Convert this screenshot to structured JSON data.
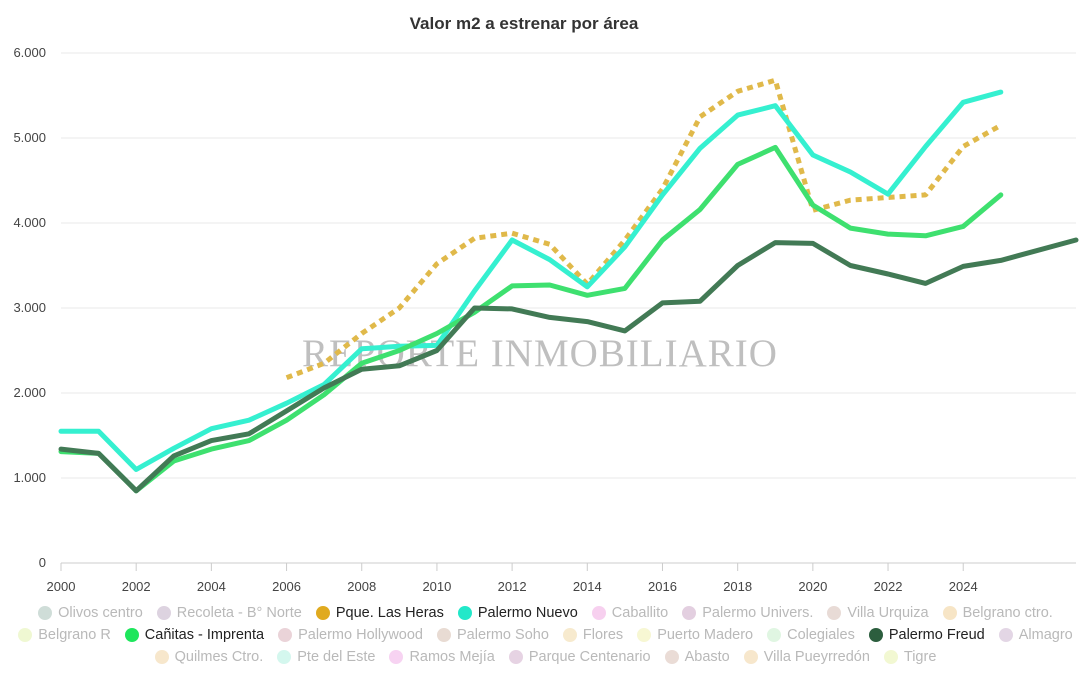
{
  "chart_data": {
    "type": "line",
    "title": "Valor m2 a estrenar por área",
    "watermark": "REPORTE INMOBILIARIO",
    "xlabel": "",
    "ylabel": "",
    "xlim": [
      2000,
      2027
    ],
    "ylim": [
      0,
      6000
    ],
    "y_ticks": [
      0,
      1000,
      2000,
      3000,
      4000,
      5000,
      6000
    ],
    "y_tick_labels": [
      "0",
      "1.000",
      "2.000",
      "3.000",
      "4.000",
      "5.000",
      "6.000"
    ],
    "x_ticks": [
      2000,
      2002,
      2004,
      2006,
      2008,
      2010,
      2012,
      2014,
      2016,
      2018,
      2020,
      2022,
      2024
    ],
    "x_tick_labels": [
      "2000",
      "2002",
      "2004",
      "2006",
      "2008",
      "2010",
      "2012",
      "2014",
      "2016",
      "2018",
      "2020",
      "2022",
      "2024"
    ],
    "grid": "horizontal",
    "legend_position": "bottom",
    "series": [
      {
        "name": "Pque. Las Heras",
        "color": "#e0b94a",
        "style": "dotted",
        "x": [
          2006,
          2007,
          2008,
          2009,
          2010,
          2011,
          2012,
          2013,
          2014,
          2015,
          2016,
          2017,
          2018,
          2019,
          2020,
          2021,
          2022,
          2023,
          2024,
          2025
        ],
        "values": [
          2180,
          2350,
          2700,
          3000,
          3520,
          3820,
          3880,
          3750,
          3280,
          3800,
          4400,
          5250,
          5550,
          5680,
          4150,
          4270,
          4300,
          4330,
          4900,
          5150
        ]
      },
      {
        "name": "Palermo Nuevo",
        "color": "#35f0d0",
        "style": "solid",
        "x": [
          2000,
          2001,
          2002,
          2003,
          2004,
          2005,
          2006,
          2007,
          2008,
          2009,
          2010,
          2011,
          2012,
          2013,
          2014,
          2015,
          2016,
          2017,
          2018,
          2019,
          2020,
          2021,
          2022,
          2023,
          2024,
          2025
        ],
        "values": [
          1550,
          1550,
          1100,
          1350,
          1580,
          1680,
          1880,
          2100,
          2520,
          2550,
          2560,
          3200,
          3800,
          3570,
          3250,
          3720,
          4330,
          4880,
          5270,
          5380,
          4800,
          4600,
          4340,
          4900,
          5420,
          5540
        ]
      },
      {
        "name": "Cañitas - Imprenta",
        "color": "#3ee06f",
        "style": "solid",
        "x": [
          2000,
          2001,
          2002,
          2003,
          2004,
          2005,
          2006,
          2007,
          2008,
          2009,
          2010,
          2011,
          2012,
          2013,
          2014,
          2015,
          2016,
          2017,
          2018,
          2019,
          2020,
          2021,
          2022,
          2023,
          2024,
          2025
        ],
        "values": [
          1310,
          1290,
          850,
          1200,
          1340,
          1440,
          1680,
          1980,
          2350,
          2500,
          2700,
          2950,
          3260,
          3270,
          3150,
          3230,
          3800,
          4160,
          4690,
          4890,
          4210,
          3940,
          3870,
          3850,
          3960,
          4330
        ]
      },
      {
        "name": "Palermo Freud",
        "color": "#427a55",
        "style": "solid",
        "x": [
          2000,
          2001,
          2002,
          2003,
          2004,
          2005,
          2006,
          2007,
          2008,
          2009,
          2010,
          2011,
          2012,
          2013,
          2014,
          2015,
          2016,
          2017,
          2018,
          2019,
          2020,
          2021,
          2022,
          2023,
          2024,
          2025,
          2027
        ],
        "values": [
          1340,
          1290,
          850,
          1260,
          1440,
          1520,
          1790,
          2060,
          2280,
          2320,
          2500,
          3000,
          2990,
          2890,
          2840,
          2730,
          3060,
          3080,
          3500,
          3770,
          3760,
          3500,
          3400,
          3290,
          3490,
          3560,
          3800
        ]
      }
    ]
  },
  "legend": {
    "rows": [
      [
        {
          "label": "Olivos centro",
          "color": "#cfddd8",
          "shown": false
        },
        {
          "label": "Recoleta - B° Norte",
          "color": "#ddd3e0",
          "shown": false
        },
        {
          "label": "Pque. Las Heras",
          "color": "#e0aa1f",
          "shown": true
        },
        {
          "label": "Palermo Nuevo",
          "color": "#22e8c9",
          "shown": true
        },
        {
          "label": "Caballito",
          "color": "#f7d0ef",
          "shown": false
        },
        {
          "label": "Palermo Univers.",
          "color": "#e3cfe0",
          "shown": false
        },
        {
          "label": "Villa Urquiza",
          "color": "#e8dbd6",
          "shown": false
        },
        {
          "label": "Belgrano ctro.",
          "color": "#f7e5c6",
          "shown": false
        }
      ],
      [
        {
          "label": "Belgrano R",
          "color": "#eff8d2",
          "shown": false
        },
        {
          "label": "Cañitas - Imprenta",
          "color": "#1ee65c",
          "shown": true
        },
        {
          "label": "Palermo Hollywood",
          "color": "#ead3d8",
          "shown": false
        },
        {
          "label": "Palermo Soho",
          "color": "#e8dbd3",
          "shown": false
        },
        {
          "label": "Flores",
          "color": "#f7eace",
          "shown": false
        },
        {
          "label": "Puerto Madero",
          "color": "#f7f7d3",
          "shown": false
        },
        {
          "label": "Colegiales",
          "color": "#e0f6e2",
          "shown": false
        },
        {
          "label": "Palermo Freud",
          "color": "#2c5e3e",
          "shown": true
        },
        {
          "label": "Almagro",
          "color": "#e3d6e5",
          "shown": false
        }
      ],
      [
        {
          "label": "Quilmes Ctro.",
          "color": "#f7e7cc",
          "shown": false
        },
        {
          "label": "Pte del Este",
          "color": "#d4f7ee",
          "shown": false
        },
        {
          "label": "Ramos Mejía",
          "color": "#f7d3f2",
          "shown": false
        },
        {
          "label": "Parque Centenario",
          "color": "#e6d3e3",
          "shown": false
        },
        {
          "label": "Abasto",
          "color": "#eadcd6",
          "shown": false
        },
        {
          "label": "Villa Pueyrredón",
          "color": "#f7e7cc",
          "shown": false
        },
        {
          "label": "Tigre",
          "color": "#f2f8d2",
          "shown": false
        }
      ]
    ]
  }
}
